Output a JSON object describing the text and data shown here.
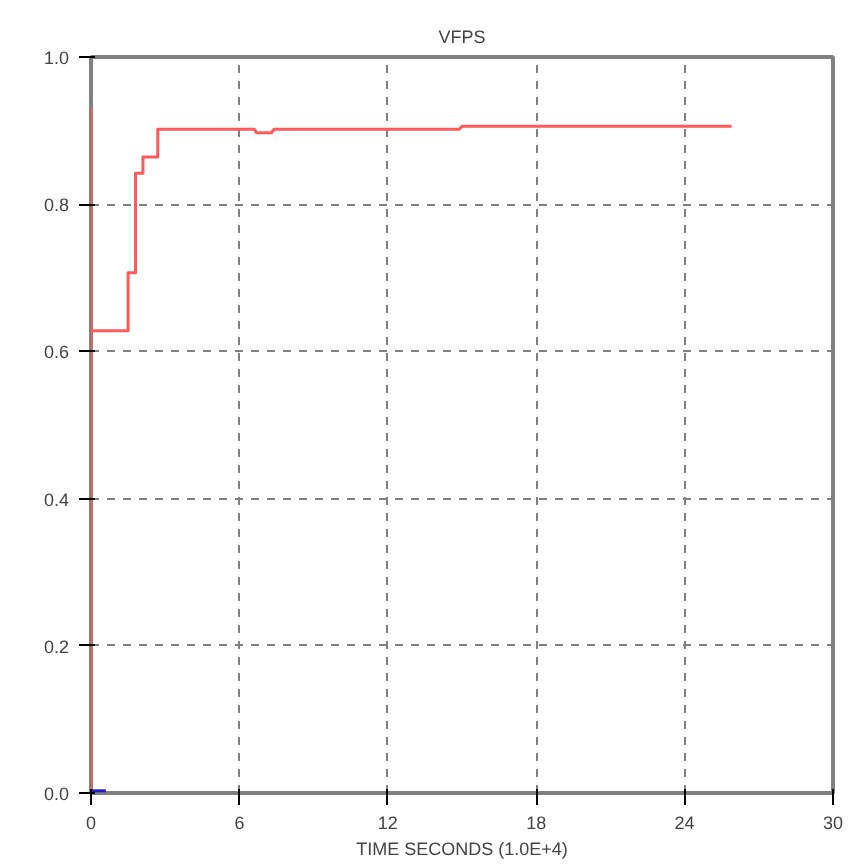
{
  "chart_data": {
    "type": "line",
    "title": "VFPS",
    "xlabel": "TIME SECONDS (1.0E+4)",
    "xlim": [
      0,
      30
    ],
    "xticks": [
      0,
      6,
      12,
      18,
      24,
      30
    ],
    "ylim": [
      0,
      1.0
    ],
    "yticks": [
      {
        "value": 0,
        "label": "0.0"
      },
      {
        "value": 0.2,
        "label": "0.2"
      },
      {
        "value": 0.4,
        "label": "0.4"
      },
      {
        "value": 0.6,
        "label": "0.6"
      },
      {
        "value": 0.8,
        "label": "0.8"
      },
      {
        "value": 1.0,
        "label": "1.0"
      }
    ],
    "grid": true,
    "line_style": "solid",
    "series": [
      {
        "color": "#ff5a5a",
        "x": [
          0,
          0,
          0,
          1.5,
          1.5,
          1.8,
          1.8,
          2.1,
          2.1,
          2.7,
          2.7,
          6.6,
          6.7,
          7.3,
          7.4,
          14.9,
          15,
          25.9
        ],
        "values": [
          0,
          0.93,
          0.628,
          0.628,
          0.707,
          0.707,
          0.842,
          0.842,
          0.864,
          0.864,
          0.902,
          0.902,
          0.897,
          0.897,
          0.902,
          0.902,
          0.906,
          0.906
        ]
      },
      {
        "color": "#2020c0",
        "x": [
          0,
          0.6
        ],
        "values": [
          0.003,
          0.003
        ]
      }
    ]
  }
}
